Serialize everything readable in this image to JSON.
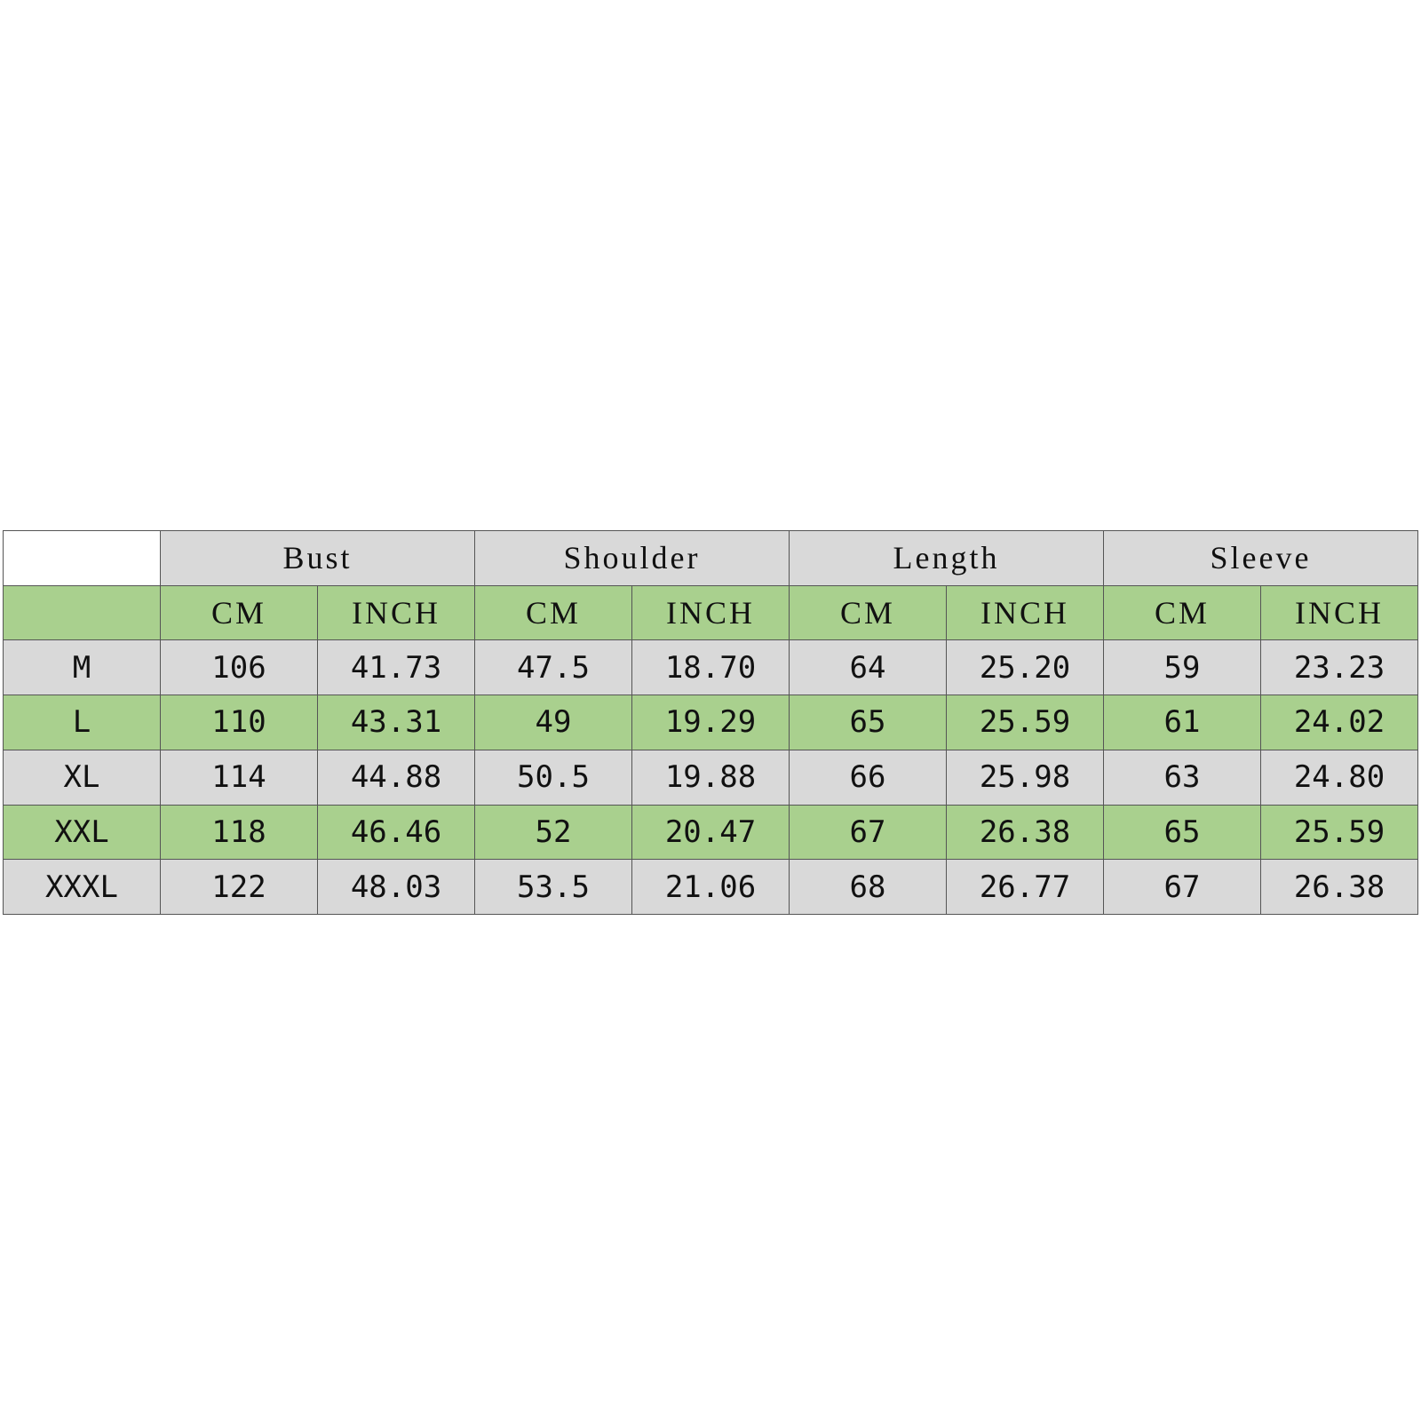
{
  "table": {
    "groups": [
      "Bust",
      "Shoulder",
      "Length",
      "Sleeve"
    ],
    "units": [
      "CM",
      "INCH",
      "CM",
      "INCH",
      "CM",
      "INCH",
      "CM",
      "INCH"
    ],
    "rows": [
      {
        "size": "M",
        "values": [
          "106",
          "41.73",
          "47.5",
          "18.70",
          "64",
          "25.20",
          "59",
          "23.23"
        ]
      },
      {
        "size": "L",
        "values": [
          "110",
          "43.31",
          "49",
          "19.29",
          "65",
          "25.59",
          "61",
          "24.02"
        ]
      },
      {
        "size": "XL",
        "values": [
          "114",
          "44.88",
          "50.5",
          "19.88",
          "66",
          "25.98",
          "63",
          "24.80"
        ]
      },
      {
        "size": "XXL",
        "values": [
          "118",
          "46.46",
          "52",
          "20.47",
          "67",
          "26.38",
          "65",
          "25.59"
        ]
      },
      {
        "size": "XXXL",
        "values": [
          "122",
          "48.03",
          "53.5",
          "21.06",
          "68",
          "26.77",
          "67",
          "26.38"
        ]
      }
    ]
  }
}
